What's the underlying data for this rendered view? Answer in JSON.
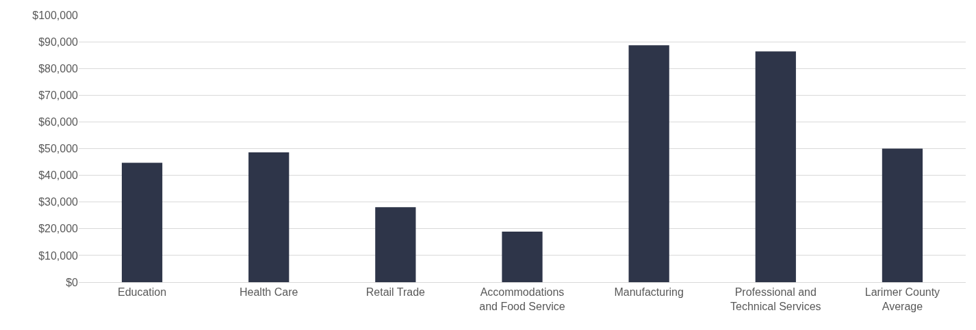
{
  "chart_data": {
    "type": "bar",
    "categories": [
      "Education",
      "Health Care",
      "Retail Trade",
      "Accommodations\nand Food Service",
      "Manufacturing",
      "Professional and\nTechnical Services",
      "Larimer County\nAverage"
    ],
    "values": [
      44700,
      48600,
      28100,
      18900,
      88700,
      86400,
      50000
    ],
    "color": "#2e3549",
    "ylim": [
      0,
      100000
    ],
    "yticks": [
      {
        "value": 0,
        "label": "$0"
      },
      {
        "value": 10000,
        "label": "$10,000"
      },
      {
        "value": 20000,
        "label": "$20,000"
      },
      {
        "value": 30000,
        "label": "$30,000"
      },
      {
        "value": 40000,
        "label": "$40,000"
      },
      {
        "value": 50000,
        "label": "$50,000"
      },
      {
        "value": 60000,
        "label": "$60,000"
      },
      {
        "value": 70000,
        "label": "$70,000"
      },
      {
        "value": 80000,
        "label": "$80,000"
      },
      {
        "value": 90000,
        "label": "$90,000"
      },
      {
        "value": 100000,
        "label": "$100,000"
      }
    ],
    "grid": "y"
  }
}
